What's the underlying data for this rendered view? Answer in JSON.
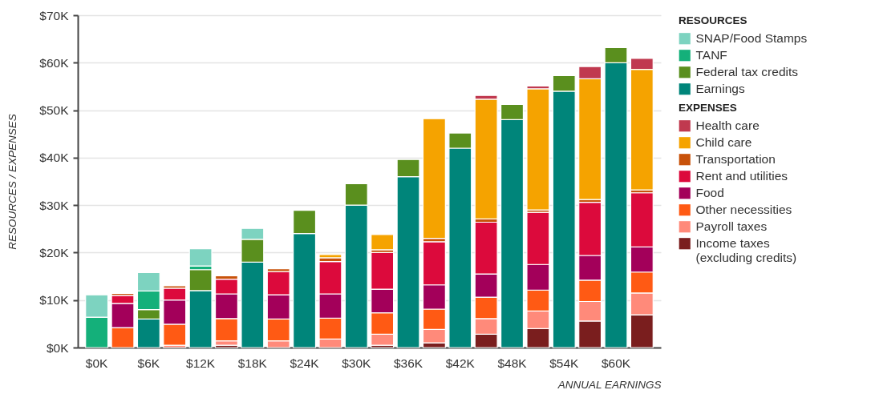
{
  "chart_data": {
    "type": "bar",
    "stacked": true,
    "categories": [
      "$0K",
      null,
      "$6K",
      null,
      "$12K",
      null,
      "$18K",
      null,
      "$24K",
      null,
      "$30K",
      null,
      "$36K",
      null,
      "$42K",
      null,
      "$48K",
      null,
      "$54K",
      null,
      "$60K",
      null
    ],
    "xlabel": "ANNUAL EARNINGS",
    "ylabel": "RESOURCES / EXPENSES",
    "legend_title": [
      "RESOURCES",
      "EXPENSES"
    ],
    "legend": "top right",
    "grid": "y",
    "ylim": [
      0,
      70
    ],
    "yticks": [
      {
        "value": 0,
        "label": "$0K"
      },
      {
        "value": 10,
        "label": "$10K"
      },
      {
        "value": 20,
        "label": "$20K"
      },
      {
        "value": 30,
        "label": "$30K"
      },
      {
        "value": 40,
        "label": "$40K"
      },
      {
        "value": 50,
        "label": "$50K"
      },
      {
        "value": 60,
        "label": "$60K"
      },
      {
        "value": 70,
        "label": "$70K"
      }
    ],
    "series": [
      {
        "name": "Earnings",
        "color": "#00857a",
        "values": [
          0,
          null,
          6,
          null,
          12,
          null,
          18,
          null,
          24,
          null,
          30,
          null,
          36,
          null,
          42,
          null,
          48,
          null,
          54,
          null,
          60,
          null
        ]
      },
      {
        "name": "Federal tax credits",
        "color": "#5a8f1e",
        "values": [
          0,
          null,
          2.0,
          null,
          4.4,
          null,
          4.8,
          null,
          4.9,
          null,
          4.5,
          null,
          3.6,
          null,
          3.2,
          null,
          3.2,
          null,
          3.3,
          null,
          3.2,
          null
        ]
      },
      {
        "name": "TANF",
        "color": "#14b07a",
        "values": [
          6.4,
          null,
          3.9,
          null,
          0.8,
          null,
          0,
          null,
          0,
          null,
          0,
          null,
          0,
          null,
          0,
          null,
          0,
          null,
          0,
          null,
          0,
          null
        ]
      },
      {
        "name": "SNAP/Food Stamps",
        "color": "#7dd3c0",
        "values": [
          4.7,
          null,
          3.9,
          null,
          3.6,
          null,
          2.3,
          null,
          0,
          null,
          0,
          null,
          0,
          null,
          0,
          null,
          0,
          null,
          0,
          null,
          0,
          null
        ]
      },
      {
        "name": "Income taxes (excluding credits)",
        "color": "#7a1e1e",
        "values": [
          null,
          0,
          null,
          0,
          null,
          0.5,
          null,
          0,
          null,
          0,
          null,
          0.5,
          null,
          1.0,
          null,
          2.8,
          null,
          4.0,
          null,
          5.6,
          null,
          6.9
        ]
      },
      {
        "name": "Payroll taxes",
        "color": "#ff8a7a",
        "values": [
          null,
          0,
          null,
          0.5,
          null,
          0.9,
          null,
          1.4,
          null,
          1.8,
          null,
          2.3,
          null,
          2.8,
          null,
          3.3,
          null,
          3.7,
          null,
          4.1,
          null,
          4.6
        ]
      },
      {
        "name": "Other necessities",
        "color": "#ff5a14",
        "values": [
          null,
          4.2,
          null,
          4.4,
          null,
          4.7,
          null,
          4.6,
          null,
          4.4,
          null,
          4.5,
          null,
          4.3,
          null,
          4.5,
          null,
          4.4,
          null,
          4.5,
          null,
          4.4
        ]
      },
      {
        "name": "Food",
        "color": "#a3005a",
        "values": [
          null,
          5.1,
          null,
          5.1,
          null,
          5.2,
          null,
          5.1,
          null,
          5.1,
          null,
          5.0,
          null,
          5.1,
          null,
          4.9,
          null,
          5.4,
          null,
          5.2,
          null,
          5.3
        ]
      },
      {
        "name": "Rent and utilities",
        "color": "#dc0a3c",
        "values": [
          null,
          1.7,
          null,
          2.5,
          null,
          3.1,
          null,
          4.9,
          null,
          6.8,
          null,
          7.7,
          null,
          9.1,
          null,
          10.9,
          null,
          11.0,
          null,
          11.2,
          null,
          11.4
        ]
      },
      {
        "name": "Transportation",
        "color": "#c8520a",
        "values": [
          null,
          0.4,
          null,
          0.5,
          null,
          0.7,
          null,
          0.6,
          null,
          0.8,
          null,
          0.6,
          null,
          0.7,
          null,
          0.7,
          null,
          0.5,
          null,
          0.6,
          null,
          0.6
        ]
      },
      {
        "name": "Child care",
        "color": "#f5a300",
        "values": [
          null,
          0,
          null,
          0,
          null,
          0,
          null,
          0,
          null,
          0.7,
          null,
          3.2,
          null,
          25.2,
          null,
          25.2,
          null,
          25.5,
          null,
          25.4,
          null,
          25.4
        ]
      },
      {
        "name": "Health care",
        "color": "#c0394f",
        "values": [
          null,
          0,
          null,
          0,
          null,
          0,
          null,
          0,
          null,
          0,
          null,
          0,
          null,
          0,
          null,
          0.8,
          null,
          0.6,
          null,
          2.6,
          null,
          2.3
        ]
      }
    ]
  }
}
